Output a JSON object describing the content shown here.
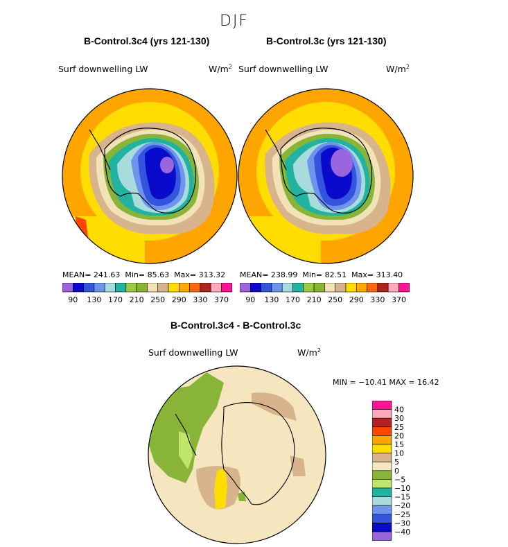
{
  "figure": {
    "season": "DJF"
  },
  "panels": [
    {
      "title": "B-Control.3c4 (yrs 121-130)",
      "variable": "Surf downwelling LW",
      "units": "W/m",
      "units_exp": "2",
      "mean_label": "MEAN= 241.63",
      "min_label": "Min=  85.63",
      "max_label": "Max= 313.32"
    },
    {
      "title": "B-Control.3c (yrs 121-130)",
      "variable": "Surf downwelling LW",
      "units": "W/m",
      "units_exp": "2",
      "mean_label": "MEAN= 238.99",
      "min_label": "Min=  82.51",
      "max_label": "Max= 313.40"
    }
  ],
  "colorbar_abs": {
    "colors": [
      "#9966dd",
      "#0a0acc",
      "#3355dd",
      "#6f94ee",
      "#a8dcdc",
      "#22b3a0",
      "#99cc44",
      "#88b538",
      "#f2e2b8",
      "#d8b48c",
      "#ffdd00",
      "#ffaa00",
      "#ff6611",
      "#b22222",
      "#ffaabb",
      "#ff1493"
    ],
    "ticks": [
      "90",
      "130",
      "170",
      "210",
      "250",
      "290",
      "330",
      "370"
    ]
  },
  "diff_panel": {
    "title": "B-Control.3c4 - B-Control.3c",
    "variable": "Surf downwelling LW",
    "units": "W/m",
    "units_exp": "2",
    "minmax_label": "MIN = −10.41 MAX =  16.42"
  },
  "colorbar_diff": {
    "colors": [
      "#ff1493",
      "#ffaabb",
      "#b22222",
      "#ff4500",
      "#ffa500",
      "#ffdd00",
      "#d8b48c",
      "#f5e6c0",
      "#88b538",
      "#bfe66b",
      "#22b3a0",
      "#a8dcdc",
      "#6f94ee",
      "#3355dd",
      "#0a0acc",
      "#9966dd"
    ],
    "ticks": [
      "40",
      "30",
      "25",
      "20",
      "15",
      "10",
      "5",
      "0",
      "−5",
      "−10",
      "−15",
      "−20",
      "−25",
      "−30",
      "−40"
    ]
  },
  "chart_data": [
    {
      "type": "heatmap",
      "title": "B-Control.3c4 (yrs 121-130)",
      "variable": "Surf downwelling LW",
      "units": "W/m2",
      "projection": "south polar stereographic",
      "mean": 241.63,
      "min": 85.63,
      "max": 313.32,
      "contour_levels": [
        90,
        130,
        170,
        210,
        250,
        290,
        330,
        370
      ]
    },
    {
      "type": "heatmap",
      "title": "B-Control.3c (yrs 121-130)",
      "variable": "Surf downwelling LW",
      "units": "W/m2",
      "projection": "south polar stereographic",
      "mean": 238.99,
      "min": 82.51,
      "max": 313.4,
      "contour_levels": [
        90,
        130,
        170,
        210,
        250,
        290,
        330,
        370
      ]
    },
    {
      "type": "heatmap",
      "title": "B-Control.3c4 - B-Control.3c",
      "variable": "Surf downwelling LW",
      "units": "W/m2",
      "projection": "south polar stereographic",
      "min": -10.41,
      "max": 16.42,
      "contour_levels": [
        -40,
        -30,
        -25,
        -20,
        -15,
        -10,
        -5,
        0,
        5,
        10,
        15,
        20,
        25,
        30,
        40
      ]
    }
  ]
}
